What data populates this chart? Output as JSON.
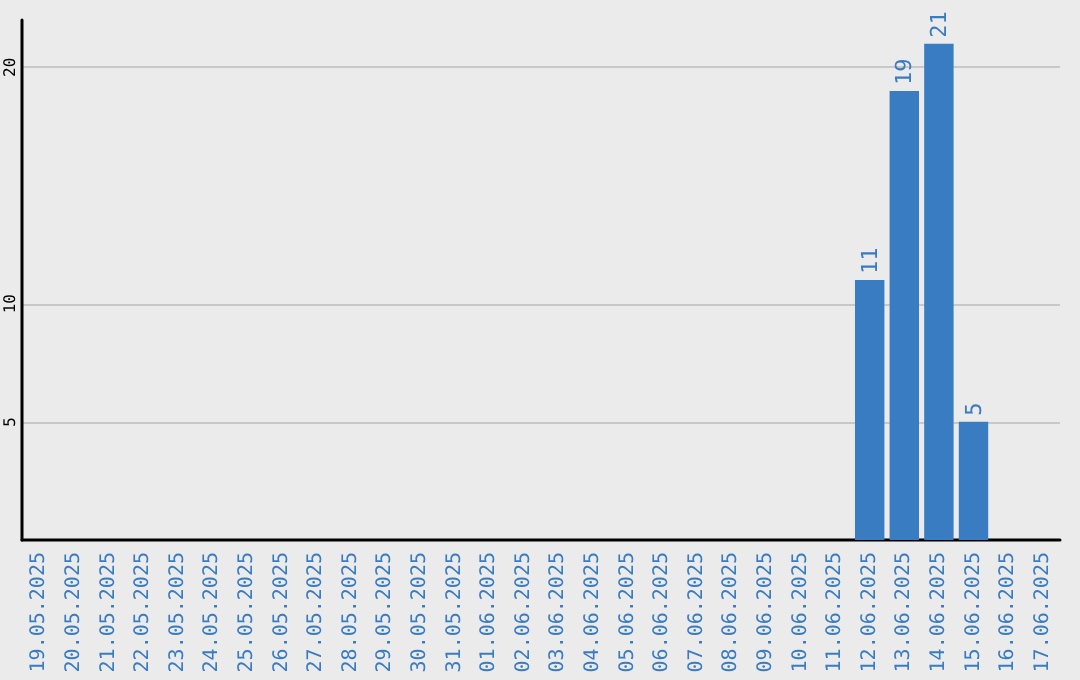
{
  "chart_data": {
    "type": "bar",
    "categories": [
      "19.05.2025",
      "20.05.2025",
      "21.05.2025",
      "22.05.2025",
      "23.05.2025",
      "24.05.2025",
      "25.05.2025",
      "26.05.2025",
      "27.05.2025",
      "28.05.2025",
      "29.05.2025",
      "30.05.2025",
      "31.05.2025",
      "01.06.2025",
      "02.06.2025",
      "03.06.2025",
      "04.06.2025",
      "05.06.2025",
      "06.06.2025",
      "07.06.2025",
      "08.06.2025",
      "09.06.2025",
      "10.06.2025",
      "11.06.2025",
      "12.06.2025",
      "13.06.2025",
      "14.06.2025",
      "15.06.2025",
      "16.06.2025",
      "17.06.2025"
    ],
    "values": [
      0,
      0,
      0,
      0,
      0,
      0,
      0,
      0,
      0,
      0,
      0,
      0,
      0,
      0,
      0,
      0,
      0,
      0,
      0,
      0,
      0,
      0,
      0,
      0,
      11,
      19,
      21,
      5,
      0,
      0
    ],
    "value_labels": [
      null,
      null,
      null,
      null,
      null,
      null,
      null,
      null,
      null,
      null,
      null,
      null,
      null,
      null,
      null,
      null,
      null,
      null,
      null,
      null,
      null,
      null,
      null,
      null,
      "11",
      "19",
      "21",
      "5",
      null,
      null
    ],
    "color": "#3a7cc2",
    "ylim": [
      0,
      22
    ],
    "yticks": [
      5,
      10,
      20
    ],
    "grid": "y"
  }
}
